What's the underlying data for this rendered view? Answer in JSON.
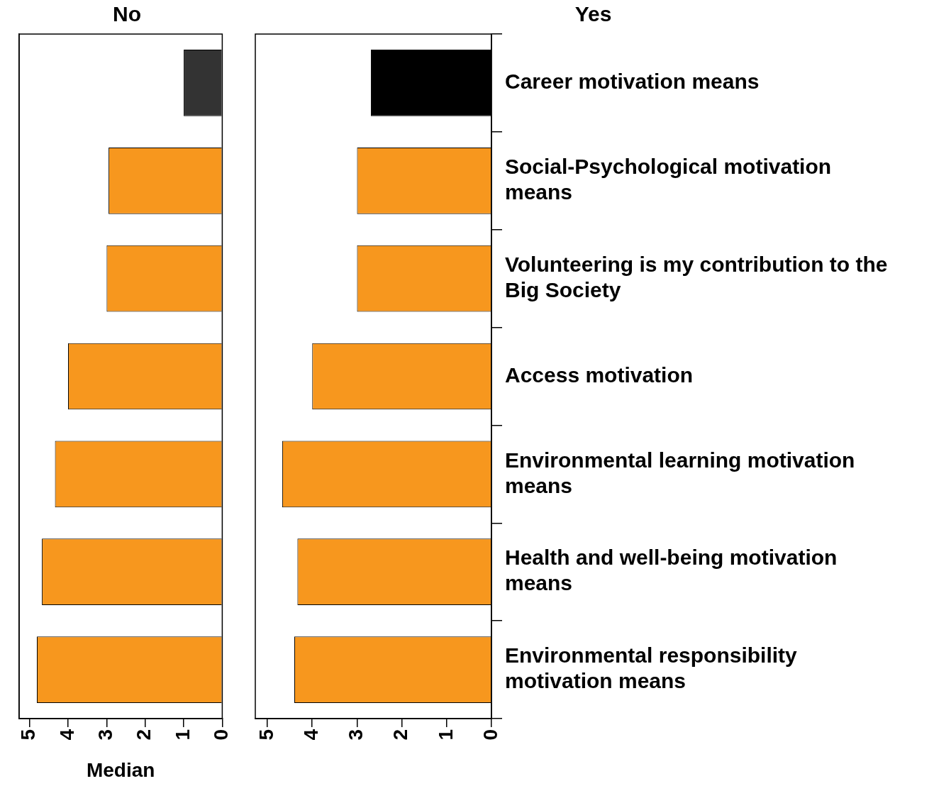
{
  "chart_data": [
    {
      "type": "bar",
      "orientation": "horizontal",
      "title": "No",
      "xlabel": "Median",
      "categories": [
        null,
        null,
        null,
        null,
        null,
        null,
        null
      ],
      "values": [
        1,
        2.95,
        3,
        4,
        4.34,
        4.68,
        4.81
      ],
      "colors": [
        "#333333",
        "#f7971e",
        "#f7971e",
        "#f7971e",
        "#f7971e",
        "#f7971e",
        "#f7971e"
      ],
      "xlim": [
        5.27,
        0
      ],
      "xticks": [
        5,
        4,
        3,
        2,
        1,
        0
      ],
      "tick_labels": "x"
    },
    {
      "type": "bar",
      "orientation": "horizontal",
      "title": "Yes",
      "categories": [
        "Career motivation means",
        "Social-Psychological motivation means",
        "Volunteering is my contribution to the Big Society",
        "Access motivation",
        "Environmental learning motivation means",
        "Health and well-being motivation means",
        "Environmental responsibility motivation means"
      ],
      "values": [
        2.69,
        3,
        3,
        4,
        4.67,
        4.33,
        4.4
      ],
      "colors": [
        "#000000",
        "#f7971e",
        "#f7971e",
        "#f7971e",
        "#f7971e",
        "#f7971e",
        "#f7971e"
      ],
      "xlim": [
        5.27,
        0
      ],
      "xticks": [
        5,
        4,
        3,
        2,
        1,
        0
      ]
    }
  ]
}
